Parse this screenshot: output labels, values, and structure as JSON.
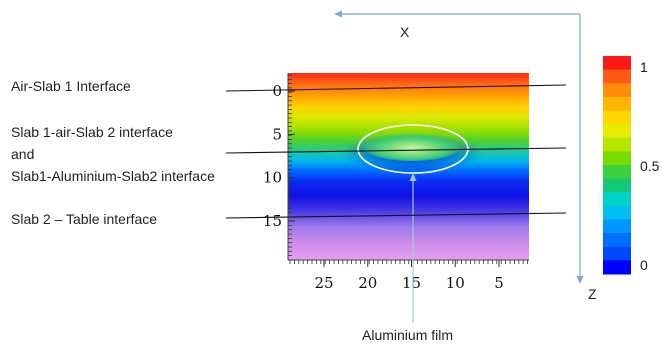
{
  "figure": {
    "labels": {
      "air_slab1": "Air-Slab 1 Interface",
      "slab1_air_slab2": "Slab 1-air-Slab 2 interface",
      "and": "and",
      "slab1_al_slab2": "Slab1-Aluminium-Slab2 interface",
      "slab2_table": "Slab 2 – Table interface",
      "aluminium_film": "Aluminium film"
    },
    "axes_letters": {
      "x": "X",
      "z": "Z"
    }
  },
  "chart_data": {
    "type": "heatmap",
    "x_ticks": [
      25,
      20,
      15,
      10,
      5
    ],
    "x_direction": "reversed",
    "y_ticks": [
      0,
      5,
      10,
      15
    ],
    "y_direction": "downward",
    "colorbar": {
      "ticks": [
        1,
        0.5,
        0
      ],
      "range": [
        0,
        1
      ],
      "colors": [
        "#ff1a1a",
        "#ff5a14",
        "#ff8c0a",
        "#ffb400",
        "#ffd700",
        "#e6ec00",
        "#b4e600",
        "#78dc00",
        "#3cd23c",
        "#14c878",
        "#00d2c8",
        "#00bef0",
        "#0096ff",
        "#006eff",
        "#0046ff",
        "#0000ff"
      ]
    },
    "colormap": "jet",
    "interfaces_depth": [
      0,
      6.5,
      6.5,
      14.5
    ]
  },
  "colors": {
    "ellipse": "#ffffff",
    "axis_arrows": "#7ea6d8",
    "pointer_line": "#a8c4e4"
  }
}
